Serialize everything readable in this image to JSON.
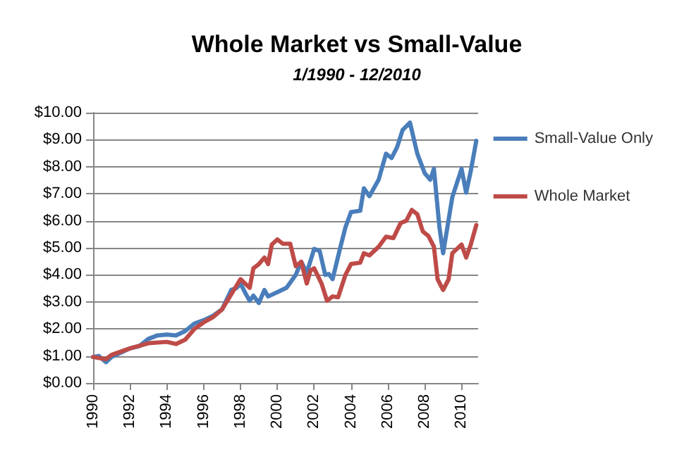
{
  "chart_data": {
    "type": "line",
    "title": "Whole Market vs Small-Value",
    "subtitle": "1/1990 - 12/2010",
    "xlim": [
      1990,
      2010.9
    ],
    "xticks": [
      1990,
      1992,
      1994,
      1996,
      1998,
      2000,
      2002,
      2004,
      2006,
      2008,
      2010
    ],
    "ylim": [
      0,
      10
    ],
    "yticks": [
      {
        "value": 0,
        "label": "$0.00"
      },
      {
        "value": 1,
        "label": "$1.00"
      },
      {
        "value": 2,
        "label": "$2.00"
      },
      {
        "value": 3,
        "label": "$3.00"
      },
      {
        "value": 4,
        "label": "$4.00"
      },
      {
        "value": 5,
        "label": "$5.00"
      },
      {
        "value": 6,
        "label": "$6.00"
      },
      {
        "value": 7,
        "label": "$7.00"
      },
      {
        "value": 8,
        "label": "$8.00"
      },
      {
        "value": 9,
        "label": "$9.00"
      },
      {
        "value": 10,
        "label": "$10.00"
      }
    ],
    "grid": "y",
    "legend": "right",
    "marker": "none",
    "line_style": "solid",
    "series": [
      {
        "name": "Small-Value Only",
        "color": "#4a7ebb",
        "x": [
          1990,
          1990.3,
          1990.7,
          1991,
          1991.5,
          1992,
          1992.5,
          1993,
          1993.5,
          1994,
          1994.5,
          1995,
          1995.5,
          1996,
          1996.5,
          1997,
          1997.5,
          1997.8,
          1998,
          1998.3,
          1998.5,
          1998.7,
          1999,
          1999.3,
          1999.5,
          2000,
          2000.5,
          2001,
          2001.3,
          2001.6,
          2002,
          2002.3,
          2002.6,
          2002.8,
          2003,
          2003.4,
          2003.7,
          2004,
          2004.5,
          2004.7,
          2005,
          2005.5,
          2005.9,
          2006.2,
          2006.5,
          2006.8,
          2007.2,
          2007.6,
          2008,
          2008.3,
          2008.5,
          2008.8,
          2009,
          2009.5,
          2010,
          2010.25,
          2010.5,
          2010.8
        ],
        "values": [
          0.96,
          1.0,
          0.77,
          0.96,
          1.12,
          1.28,
          1.36,
          1.63,
          1.76,
          1.79,
          1.76,
          1.92,
          2.2,
          2.32,
          2.48,
          2.72,
          3.44,
          3.52,
          3.68,
          3.28,
          3.04,
          3.23,
          2.96,
          3.44,
          3.2,
          3.36,
          3.52,
          4.0,
          4.48,
          4.08,
          4.96,
          4.88,
          4.0,
          4.03,
          3.84,
          4.96,
          5.76,
          6.32,
          6.37,
          7.2,
          6.91,
          7.52,
          8.48,
          8.32,
          8.72,
          9.36,
          9.63,
          8.48,
          7.76,
          7.52,
          7.92,
          5.76,
          4.8,
          6.88,
          7.92,
          7.04,
          7.84,
          8.96
        ]
      },
      {
        "name": "Whole Market",
        "color": "#be4b48",
        "x": [
          1990,
          1990.7,
          1991,
          1992,
          1993,
          1994,
          1994.5,
          1995,
          1995.5,
          1996,
          1996.5,
          1997,
          1997.5,
          1998,
          1998.5,
          1998.7,
          1999,
          1999.3,
          1999.5,
          1999.7,
          2000,
          2000.3,
          2000.7,
          2001,
          2001.3,
          2001.6,
          2001.8,
          2002,
          2002.4,
          2002.7,
          2003,
          2003.3,
          2003.7,
          2004,
          2004.5,
          2004.7,
          2005,
          2005.5,
          2005.9,
          2006.3,
          2006.7,
          2007,
          2007.3,
          2007.6,
          2007.9,
          2008.2,
          2008.5,
          2008.7,
          2009,
          2009.3,
          2009.5,
          2010,
          2010.25,
          2010.5,
          2010.8
        ],
        "values": [
          0.96,
          0.88,
          1.04,
          1.28,
          1.47,
          1.52,
          1.44,
          1.6,
          2.0,
          2.24,
          2.43,
          2.72,
          3.28,
          3.84,
          3.52,
          4.24,
          4.4,
          4.64,
          4.4,
          5.12,
          5.31,
          5.15,
          5.15,
          4.32,
          4.48,
          3.68,
          4.16,
          4.24,
          3.68,
          3.04,
          3.2,
          3.17,
          4.0,
          4.4,
          4.45,
          4.8,
          4.72,
          5.04,
          5.41,
          5.36,
          5.92,
          6.0,
          6.4,
          6.24,
          5.6,
          5.44,
          5.04,
          3.84,
          3.44,
          3.84,
          4.8,
          5.12,
          4.64,
          5.12,
          5.84
        ]
      }
    ]
  }
}
